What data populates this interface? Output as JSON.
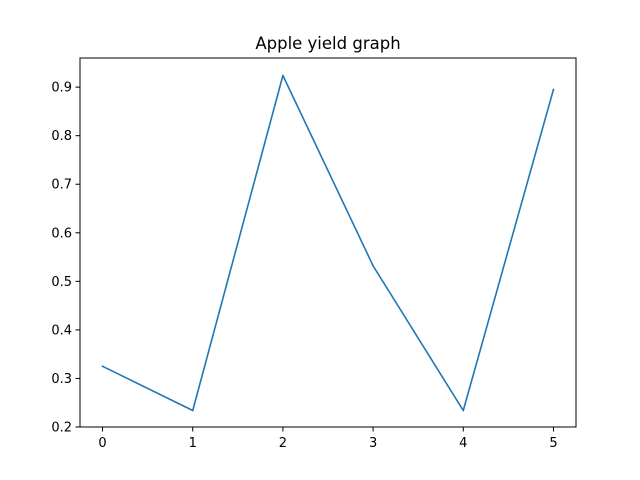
{
  "chart_data": {
    "type": "line",
    "title": "Apple yield graph",
    "xlabel": "",
    "ylabel": "",
    "x": [
      0,
      1,
      2,
      3,
      4,
      5
    ],
    "series": [
      {
        "values": [
          0.325,
          0.234,
          0.924,
          0.532,
          0.234,
          0.895
        ],
        "color": "#1f77b4"
      }
    ],
    "xlim": [
      -0.25,
      5.25
    ],
    "ylim": [
      0.2,
      0.96
    ],
    "xticks": [
      0,
      1,
      2,
      3,
      4,
      5
    ],
    "yticks": [
      0.2,
      0.3,
      0.4,
      0.5,
      0.6,
      0.7,
      0.8,
      0.9
    ],
    "xtick_labels": [
      "0",
      "1",
      "2",
      "3",
      "4",
      "5"
    ],
    "ytick_labels": [
      "0.2",
      "0.3",
      "0.4",
      "0.5",
      "0.6",
      "0.7",
      "0.8",
      "0.9"
    ],
    "grid": false,
    "legend": false
  }
}
